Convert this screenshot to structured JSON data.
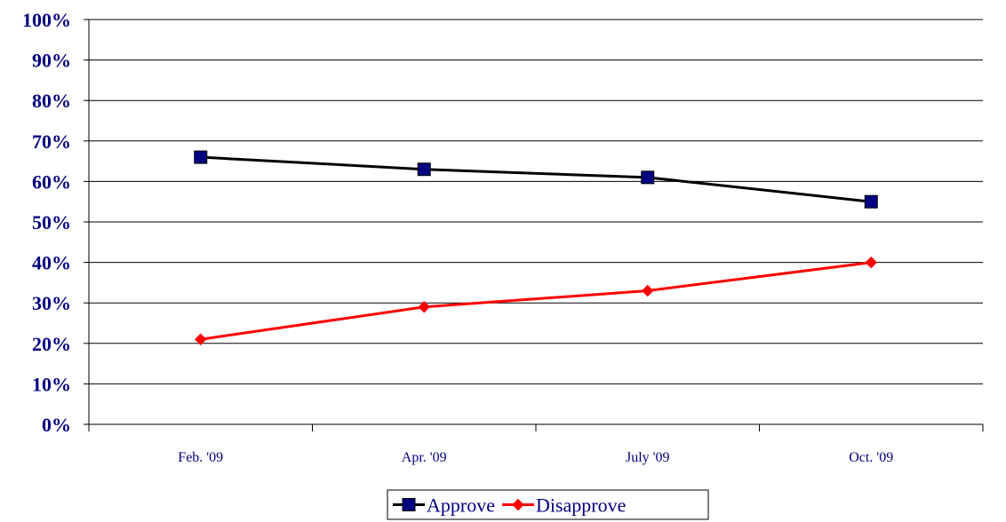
{
  "chart_data": {
    "type": "line",
    "title": "",
    "xlabel": "",
    "ylabel": "",
    "categories": [
      "Feb. '09",
      "Apr. '09",
      "July '09",
      "Oct. '09"
    ],
    "y_ticks": [
      "0%",
      "10%",
      "20%",
      "30%",
      "40%",
      "50%",
      "60%",
      "70%",
      "80%",
      "90%",
      "100%"
    ],
    "ylim": [
      0,
      100
    ],
    "grid": true,
    "legend_position": "bottom",
    "series": [
      {
        "name": "Approve",
        "values": [
          66,
          63,
          61,
          55
        ],
        "color": "#000000",
        "marker": "square",
        "marker_color": "#000080"
      },
      {
        "name": "Disapprove",
        "values": [
          21,
          29,
          33,
          40
        ],
        "color": "#ff0000",
        "marker": "diamond",
        "marker_color": "#ff0000"
      }
    ]
  }
}
